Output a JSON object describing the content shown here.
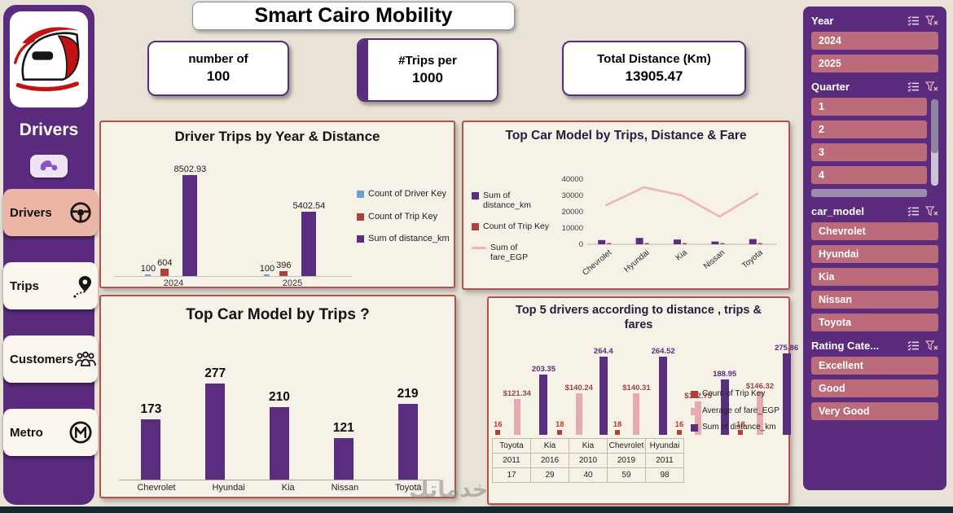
{
  "title": "Smart Cairo Mobility",
  "watermark": "خدماتك",
  "colors": {
    "purple": "#5b2b7d",
    "bar_purple": "#5a2d7e",
    "bar_red": "#b0413a",
    "bar_blue": "#6a9fd8",
    "bar_pink": "#e7aab0",
    "line_pink": "#eeb2b8",
    "panel_border": "#b0544c",
    "slicer_button": "#bb6b79",
    "active_nav": "#edb5a5"
  },
  "left_sidebar": {
    "title": "Drivers",
    "logo_icon": "train-icon",
    "quick_icon": "scooter-icon",
    "nav_items": [
      {
        "label": "Drivers",
        "icon": "steering-wheel-icon",
        "active": true
      },
      {
        "label": "Trips",
        "icon": "route-pin-icon",
        "active": false
      },
      {
        "label": "Customers",
        "icon": "people-icon",
        "active": false
      },
      {
        "label": "Metro",
        "icon": "metro-icon",
        "active": false
      }
    ]
  },
  "kpis": [
    {
      "label": "number of",
      "value": "100"
    },
    {
      "label": "#Trips per",
      "value": "1000"
    },
    {
      "label": "Total Distance (Km)",
      "value": "13905.47"
    }
  ],
  "chart_data": [
    {
      "type": "bar",
      "title": "Driver Trips by Year & Distance",
      "categories": [
        "2024",
        "2025"
      ],
      "series": [
        {
          "name": "Count of Driver Key",
          "color": "#6a9fd8",
          "values": [
            100,
            100
          ],
          "labels": [
            "100",
            "100"
          ]
        },
        {
          "name": "Count of Trip Key",
          "color": "#b0413a",
          "values": [
            604,
            396
          ],
          "labels": [
            "604",
            "396"
          ]
        },
        {
          "name": "Sum of distance_km",
          "color": "#5a2d7e",
          "values": [
            8502.93,
            5402.54
          ],
          "labels": [
            "8502.93",
            "5402.54"
          ]
        }
      ],
      "ylim": [
        0,
        8502.93
      ],
      "legend_position": "right"
    },
    {
      "type": "combo",
      "title": "Top Car Model by Trips, Distance & Fare",
      "categories": [
        "Chevrolet",
        "Hyundai",
        "Kia",
        "Nissan",
        "Toyota"
      ],
      "y_ticks": [
        "0",
        "10000",
        "20000",
        "30000",
        "40000"
      ],
      "ylim": [
        0,
        40000
      ],
      "bars": [
        {
          "name": "Sum of distance_km",
          "color": "#5a2d7e",
          "values": [
            2600,
            3900,
            2900,
            1700,
            3200
          ]
        },
        {
          "name": "Count of Trip Key",
          "color": "#b0413a",
          "values": [
            173,
            277,
            210,
            121,
            219
          ]
        }
      ],
      "line": {
        "name": "Sum of fare_EGP",
        "color": "#eeb2b8",
        "values": [
          24000,
          35000,
          30000,
          17000,
          31000
        ]
      },
      "legend_position": "left"
    },
    {
      "type": "bar",
      "title": "Top Car Model by Trips ?",
      "categories": [
        "Chevrolet",
        "Hyundai",
        "Kia",
        "Nissan",
        "Toyota"
      ],
      "values": [
        173,
        277,
        210,
        121,
        219
      ],
      "labels": [
        "173",
        "277",
        "210",
        "121",
        "219"
      ],
      "color": "#5a2d7e",
      "ylim": [
        0,
        300
      ]
    },
    {
      "type": "combo",
      "title": "Top 5 drivers according to distance , trips & fares",
      "groups": [
        {
          "model": "Toyota",
          "year": "2011",
          "driver": "17",
          "trips": 16,
          "fare": 121.34,
          "distance": 203.35,
          "trips_label": "16",
          "fare_label": "$121.34",
          "distance_label": "203.35"
        },
        {
          "model": "Kia",
          "year": "2016",
          "driver": "29",
          "trips": 18,
          "fare": 140.24,
          "distance": 264.4,
          "trips_label": "18",
          "fare_label": "$140.24",
          "distance_label": "264.4"
        },
        {
          "model": "Kia",
          "year": "2010",
          "driver": "40",
          "trips": 18,
          "fare": 140.31,
          "distance": 264.52,
          "trips_label": "18",
          "fare_label": "$140.31",
          "distance_label": "264.52"
        },
        {
          "model": "Chevrolet",
          "year": "2019",
          "driver": "59",
          "trips": 16,
          "fare": 112.75,
          "distance": 188.95,
          "trips_label": "16",
          "fare_label": "$112.75",
          "distance_label": "188.95"
        },
        {
          "model": "Hyundai",
          "year": "2011",
          "driver": "98",
          "trips": 18,
          "fare": 146.32,
          "distance": 275.86,
          "trips_label": "18",
          "fare_label": "$146.32",
          "distance_label": "275.86"
        }
      ],
      "legend": [
        {
          "name": "Count of Trip Key",
          "color": "#b0413a"
        },
        {
          "name": "Average of fare_EGP",
          "color": "#e7aab0"
        },
        {
          "name": "Sum of distance_km",
          "color": "#5a2d7e"
        }
      ],
      "ylim": [
        0,
        280
      ],
      "legend_position": "right"
    }
  ],
  "filters": [
    {
      "title": "Year",
      "icons": [
        "select-all-icon",
        "clear-filter-icon"
      ],
      "items": [
        "2024",
        "2025"
      ],
      "scrollbar": false,
      "partial_item": false
    },
    {
      "title": "Quarter",
      "icons": [
        "select-all-icon",
        "clear-filter-icon"
      ],
      "items": [
        "1",
        "2",
        "3",
        "4"
      ],
      "scrollbar": true,
      "partial_item": true
    },
    {
      "title": "car_model",
      "icons": [
        "select-all-icon",
        "clear-filter-icon"
      ],
      "items": [
        "Chevrolet",
        "Hyundai",
        "Kia",
        "Nissan",
        "Toyota"
      ],
      "scrollbar": false,
      "partial_item": false
    },
    {
      "title": "Rating Cate...",
      "icons": [
        "select-all-icon",
        "clear-filter-icon"
      ],
      "items": [
        "Excellent",
        "Good",
        "Very Good"
      ],
      "scrollbar": false,
      "partial_item": false
    }
  ]
}
